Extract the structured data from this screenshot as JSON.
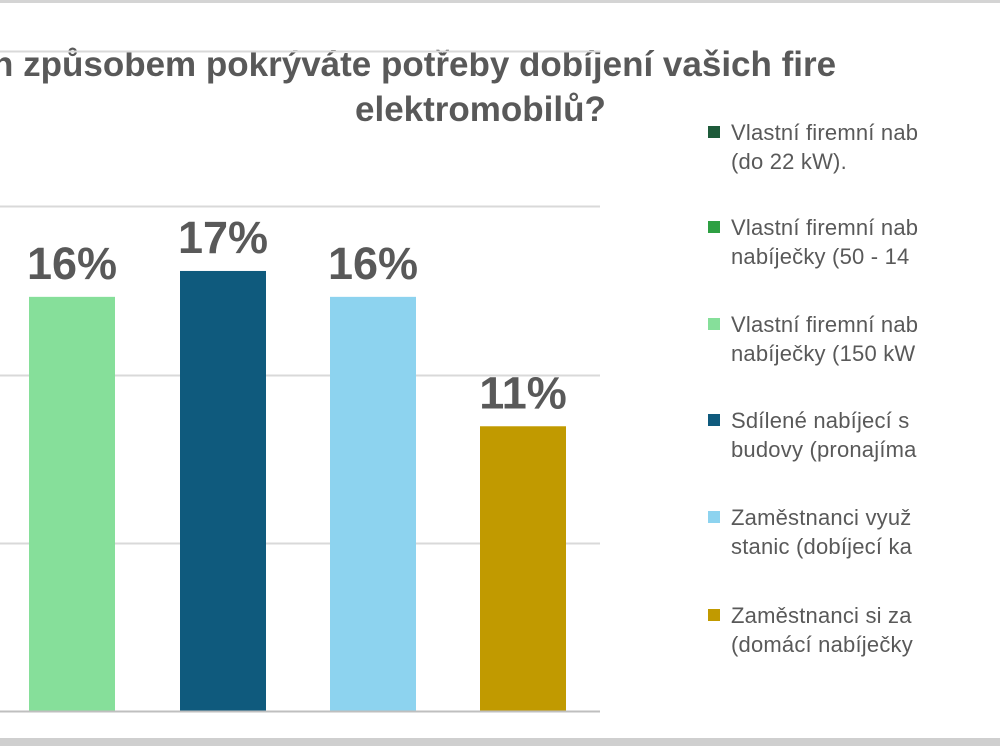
{
  "chart_data": {
    "type": "bar",
    "title_line1": "n způsobem pokrýváte potřeby dobíjení vašich fire",
    "title_line2": "elektromobilů?",
    "categories": [
      "Vlastní firemní nab\n(do 22 kW).",
      "Vlastní firemní nab\nnabíječky (50 - 14",
      "Vlastní firemní nab\nnabíječky (150 kW",
      "Sdílené nabíjecí s\nbudovy (pronajíma",
      "Zaměstnanci využ\nstanic (dobíjecí ka",
      "Zaměstnanci si za\n(domácí nabíječky"
    ],
    "visible_categories": [
      2,
      3,
      4,
      5
    ],
    "values": [
      null,
      null,
      16,
      17,
      16,
      11
    ],
    "labels": [
      "",
      "",
      "16%",
      "17%",
      "16%",
      "11%"
    ],
    "colors": [
      "#1e5b3a",
      "#2ea043",
      "#86df9a",
      "#0f5a7d",
      "#8dd3ef",
      "#c19a00"
    ],
    "ylim": [
      0,
      26
    ],
    "grid": true,
    "legend_position": "right"
  }
}
